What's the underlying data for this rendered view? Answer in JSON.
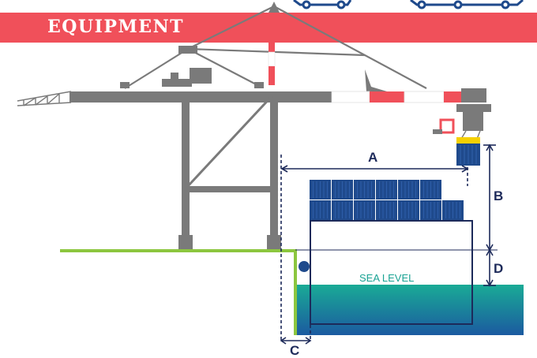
{
  "header": {
    "title": "EQUIPMENT",
    "accent_color": "#f0505a"
  },
  "diagram": {
    "dimension_labels": {
      "a": "A",
      "b": "B",
      "c": "C",
      "d": "D"
    },
    "sea_label": "SEA LEVEL",
    "colors": {
      "crane": "#7a7a7a",
      "container": "#1f4a8c",
      "container_light": "#2e5ea8",
      "quay": "#8cc63f",
      "sea_top": "#1aab96",
      "sea_bottom": "#1b5aa0",
      "dimension": "#1d2a5a",
      "boom_red": "#f0505a",
      "spreader_yellow": "#f5d000"
    },
    "container_stack": {
      "rows": 2,
      "columns_top_row": 6,
      "columns_bottom_row": 7
    }
  }
}
